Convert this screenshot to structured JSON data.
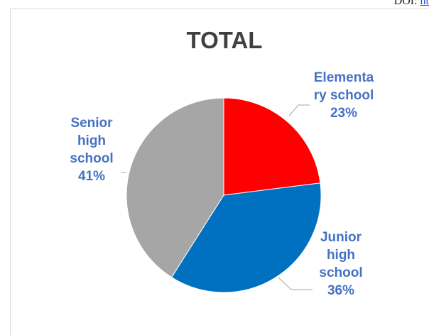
{
  "header": {
    "doi_prefix": "DOI: ",
    "doi_link": "ht"
  },
  "chart_data": {
    "type": "pie",
    "title": "TOTAL",
    "categories": [
      "Elementary school",
      "Junior high school",
      "Senior high school"
    ],
    "values": [
      23,
      36,
      41
    ],
    "labels": [
      {
        "lines": [
          "Elementa",
          "ry school",
          "23%"
        ]
      },
      {
        "lines": [
          "Junior",
          "high",
          "school",
          "36%"
        ]
      },
      {
        "lines": [
          "Senior",
          "high",
          "school",
          "41%"
        ]
      }
    ],
    "colors": [
      "#ff0000",
      "#0070c0",
      "#a6a6a6"
    ],
    "label_color": "#4472c4"
  }
}
